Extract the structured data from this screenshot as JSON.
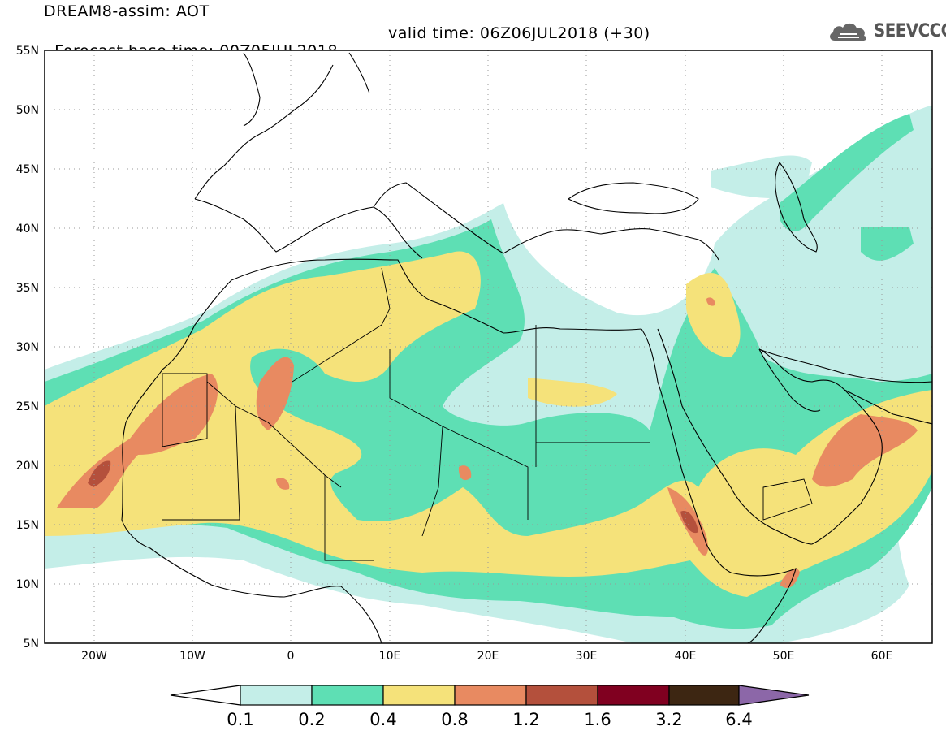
{
  "header": {
    "title": "DREAM8-assim: AOT",
    "base_time": "Forecast base time: 00Z05JUL2018",
    "valid_time": "valid time: 06Z06JUL2018 (+30)",
    "logo_text": "SEEVCCC"
  },
  "map": {
    "lon_range": [
      -25,
      65
    ],
    "lat_range": [
      5,
      55
    ],
    "lat_ticks": [
      "5N",
      "10N",
      "15N",
      "20N",
      "25N",
      "30N",
      "35N",
      "40N",
      "45N",
      "50N",
      "55N"
    ],
    "lon_ticks": [
      "20W",
      "10W",
      "0",
      "10E",
      "20E",
      "30E",
      "40E",
      "50E",
      "60E"
    ],
    "grid": "dotted"
  },
  "colorbar": {
    "levels": [
      "0.1",
      "0.2",
      "0.4",
      "0.8",
      "1.2",
      "1.6",
      "3.2",
      "6.4"
    ],
    "colors": [
      "#ffffff",
      "#c4eee8",
      "#5edfb4",
      "#f5e27a",
      "#e88a61",
      "#b4503c",
      "#800020",
      "#3d2612",
      "#8c67a8"
    ]
  }
}
